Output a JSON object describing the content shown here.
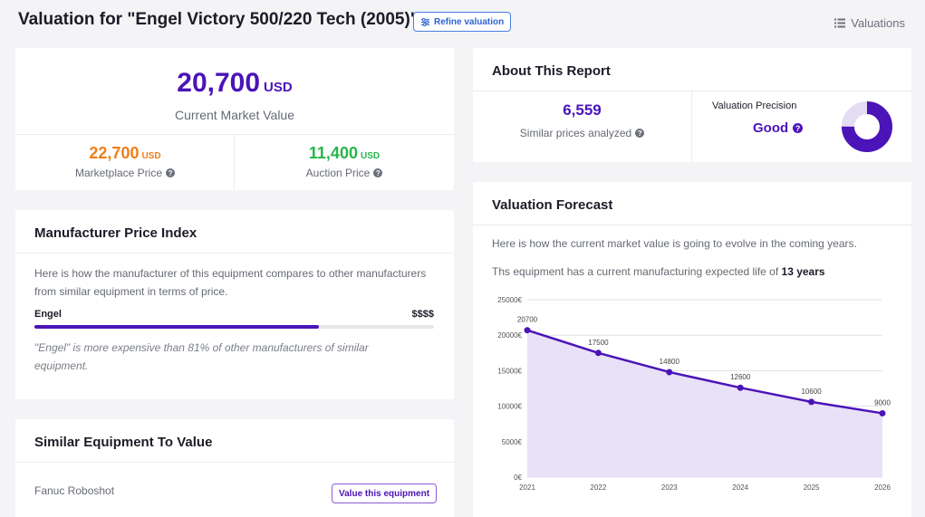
{
  "header": {
    "title": "Valuation for \"Engel Victory 500/220 Tech (2005)\"",
    "refine_label": "Refine valuation",
    "valuations_label": "Valuations"
  },
  "value_card": {
    "main_value": "20,700",
    "main_currency": "USD",
    "main_label": "Current Market Value",
    "marketplace": {
      "value": "22,700",
      "currency": "USD",
      "label": "Marketplace Price"
    },
    "auction": {
      "value": "11,400",
      "currency": "USD",
      "label": "Auction Price"
    }
  },
  "manufacturer": {
    "title": "Manufacturer Price Index",
    "description": "Here is how the manufacturer of this equipment compares to other manufacturers from similar equipment in terms of price.",
    "name": "Engel",
    "price_level": "$$$$",
    "percentile": 81,
    "note": "\"Engel\" is more expensive than 81% of other manufacturers of similar equipment."
  },
  "similar": {
    "title": "Similar Equipment To Value",
    "items": [
      {
        "name": "Fanuc Roboshot",
        "button": "Value this equipment"
      }
    ]
  },
  "about": {
    "title": "About This Report",
    "count": "6,559",
    "count_label": "Similar prices analyzed",
    "precision_label": "Valuation Precision",
    "precision_value": "Good",
    "precision_fraction": 0.75
  },
  "forecast": {
    "title": "Valuation Forecast",
    "text1": "Here is how the current market value is going to evolve in the coming years.",
    "text2_prefix": "Ths equipment has a current manufacturing expected life of",
    "text2_bold": "13 years"
  },
  "colors": {
    "accent": "#4b14b8",
    "marketplace": "#f07d17",
    "auction": "#26b649",
    "chart_fill": "#e9e1f7"
  },
  "chart_data": {
    "type": "area",
    "x": [
      "2021",
      "2022",
      "2023",
      "2024",
      "2025",
      "2026"
    ],
    "values": [
      20700,
      17500,
      14800,
      12600,
      10600,
      9000
    ],
    "data_labels": [
      "20700",
      "17500",
      "14800",
      "12600",
      "10600",
      "9000"
    ],
    "yticks": [
      25000,
      20000,
      15000,
      10000,
      5000,
      0
    ],
    "ytick_labels": [
      "25000€",
      "20000€",
      "15000€",
      "10000€",
      "5000€",
      "0€"
    ],
    "ylim": [
      0,
      25000
    ],
    "grid": true,
    "title": "",
    "xlabel": "",
    "ylabel": ""
  }
}
